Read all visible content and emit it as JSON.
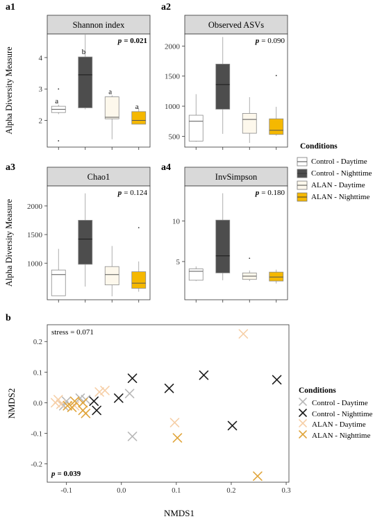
{
  "colors": {
    "control_day": "#ffffff",
    "control_night": "#4d4d4d",
    "alan_day": "#fdf8ec",
    "alan_night": "#f5b800",
    "strip_bg": "#d9d9d9",
    "scatter_control_day": "#b8b8b8",
    "scatter_control_night": "#1a1a1a",
    "scatter_alan_day": "#f6cfa7",
    "scatter_alan_night": "#e0a43a"
  },
  "legend_boxes": {
    "title": "Conditions",
    "items": [
      "Control - Daytime",
      "Control - Nighttime",
      "ALAN - Daytime",
      "ALAN - Nighttime"
    ]
  },
  "legend_scatter": {
    "title": "Conditions",
    "items": [
      "Control - Daytime",
      "Control - Nighttime",
      "ALAN - Daytime",
      "ALAN - Nighttime"
    ]
  },
  "chart_data": [
    {
      "type": "box",
      "panel_label": "a1",
      "title": "Shannon index",
      "p_prefix": "p",
      "p_value": "= 0.021",
      "p_bold": true,
      "ylabel": "Alpha Diversity Measure",
      "ylim": [
        1.15,
        4.75
      ],
      "yticks": [
        2,
        3,
        4
      ],
      "groups": [
        {
          "name": "Control - Daytime",
          "min": 2.2,
          "q1": 2.25,
          "median": 2.35,
          "q3": 2.45,
          "max": 2.5,
          "outliers": [
            3.0,
            1.35
          ],
          "letter": "a"
        },
        {
          "name": "Control - Nighttime",
          "min": 2.35,
          "q1": 2.4,
          "median": 3.45,
          "q3": 4.02,
          "max": 4.75,
          "outliers": [],
          "letter": "b"
        },
        {
          "name": "ALAN - Daytime",
          "min": 1.4,
          "q1": 2.05,
          "median": 2.1,
          "q3": 2.75,
          "max": 2.8,
          "outliers": [],
          "letter": "a"
        },
        {
          "name": "ALAN - Nighttime",
          "min": 1.88,
          "q1": 1.88,
          "median": 2.0,
          "q3": 2.28,
          "max": 2.38,
          "outliers": [],
          "letter": "a"
        }
      ]
    },
    {
      "type": "box",
      "panel_label": "a2",
      "title": "Observed ASVs",
      "p_prefix": "p",
      "p_value": "= 0.090",
      "p_bold": false,
      "ylabel": "",
      "ylim": [
        320,
        2200
      ],
      "yticks": [
        500,
        1000,
        1500,
        2000
      ],
      "groups": [
        {
          "name": "Control - Daytime",
          "min": 410,
          "q1": 420,
          "median": 750,
          "q3": 850,
          "max": 1200,
          "outliers": []
        },
        {
          "name": "Control - Nighttime",
          "min": 540,
          "q1": 950,
          "median": 1360,
          "q3": 1700,
          "max": 2150,
          "outliers": []
        },
        {
          "name": "ALAN - Daytime",
          "min": 390,
          "q1": 550,
          "median": 780,
          "q3": 880,
          "max": 1150,
          "outliers": []
        },
        {
          "name": "ALAN - Nighttime",
          "min": 510,
          "q1": 530,
          "median": 600,
          "q3": 790,
          "max": 990,
          "outliers": [
            1510
          ]
        }
      ]
    },
    {
      "type": "box",
      "panel_label": "a3",
      "title": "Chao1",
      "p_prefix": "p",
      "p_value": "= 0.124",
      "p_bold": false,
      "ylabel": "Alpha Diversity Measure",
      "ylim": [
        360,
        2350
      ],
      "yticks": [
        1000,
        1500,
        2000
      ],
      "groups": [
        {
          "name": "Control - Daytime",
          "min": 430,
          "q1": 430,
          "median": 800,
          "q3": 880,
          "max": 1250,
          "outliers": []
        },
        {
          "name": "Control - Nighttime",
          "min": 590,
          "q1": 980,
          "median": 1420,
          "q3": 1750,
          "max": 2220,
          "outliers": []
        },
        {
          "name": "ALAN - Daytime",
          "min": 420,
          "q1": 620,
          "median": 800,
          "q3": 940,
          "max": 1300,
          "outliers": []
        },
        {
          "name": "ALAN - Nighttime",
          "min": 500,
          "q1": 560,
          "median": 650,
          "q3": 850,
          "max": 1030,
          "outliers": [
            1620
          ]
        }
      ]
    },
    {
      "type": "box",
      "panel_label": "a4",
      "title": "InvSimpson",
      "p_prefix": "p",
      "p_value": "= 0.180",
      "p_bold": false,
      "ylabel": "",
      "ylim": [
        0.3,
        14.3
      ],
      "yticks": [
        5,
        10
      ],
      "groups": [
        {
          "name": "Control - Daytime",
          "min": 2.6,
          "q1": 2.7,
          "median": 3.8,
          "q3": 4.1,
          "max": 4.4,
          "outliers": []
        },
        {
          "name": "Control - Nighttime",
          "min": 2.7,
          "q1": 3.6,
          "median": 5.7,
          "q3": 10.1,
          "max": 13.4,
          "outliers": []
        },
        {
          "name": "ALAN - Daytime",
          "min": 2.6,
          "q1": 2.8,
          "median": 3.2,
          "q3": 3.6,
          "max": 3.9,
          "outliers": [
            5.4
          ]
        },
        {
          "name": "ALAN - Nighttime",
          "min": 2.3,
          "q1": 2.6,
          "median": 3.1,
          "q3": 3.7,
          "max": 4.0,
          "outliers": []
        }
      ]
    },
    {
      "type": "scatter",
      "panel_label": "b",
      "xlabel": "NMDS1",
      "ylabel": "NMDS2",
      "xlim": [
        -0.135,
        0.305
      ],
      "ylim": [
        -0.26,
        0.255
      ],
      "xticks": [
        -0.1,
        0.0,
        0.1,
        0.2,
        0.3
      ],
      "xtick_labels": [
        "-0.1",
        "0.0",
        "0.1",
        "0.2",
        "0.3"
      ],
      "yticks": [
        -0.2,
        -0.1,
        0.0,
        0.1,
        0.2
      ],
      "ytick_labels": [
        "-0.2",
        "-0.1",
        "0.0",
        "0.1",
        "0.2"
      ],
      "stress_text": "stress = 0.071",
      "p_prefix": "p",
      "p_value": "= 0.039",
      "series": [
        {
          "name": "Control - Daytime",
          "points": [
            [
              -0.1,
              0.005
            ],
            [
              -0.105,
              -0.01
            ],
            [
              -0.075,
              0.015
            ],
            [
              -0.065,
              0.01
            ],
            [
              0.015,
              0.03
            ],
            [
              0.02,
              -0.11
            ]
          ]
        },
        {
          "name": "Control - Nighttime",
          "points": [
            [
              -0.05,
              0.005
            ],
            [
              -0.045,
              -0.025
            ],
            [
              -0.005,
              0.015
            ],
            [
              0.02,
              0.08
            ],
            [
              0.087,
              0.047
            ],
            [
              0.15,
              0.09
            ],
            [
              0.202,
              -0.075
            ],
            [
              0.283,
              0.075
            ]
          ]
        },
        {
          "name": "ALAN - Daytime",
          "points": [
            [
              -0.12,
              0.0
            ],
            [
              -0.115,
              0.01
            ],
            [
              -0.11,
              -0.005
            ],
            [
              -0.085,
              -0.01
            ],
            [
              -0.04,
              0.035
            ],
            [
              -0.03,
              0.04
            ],
            [
              0.097,
              -0.065
            ],
            [
              0.222,
              0.225
            ]
          ]
        },
        {
          "name": "ALAN - Nighttime",
          "points": [
            [
              -0.098,
              -0.01
            ],
            [
              -0.09,
              -0.015
            ],
            [
              -0.085,
              0.005
            ],
            [
              -0.07,
              -0.025
            ],
            [
              -0.065,
              -0.035
            ],
            [
              -0.07,
              0.0
            ],
            [
              0.102,
              -0.115
            ],
            [
              0.248,
              -0.24
            ]
          ]
        }
      ]
    }
  ]
}
